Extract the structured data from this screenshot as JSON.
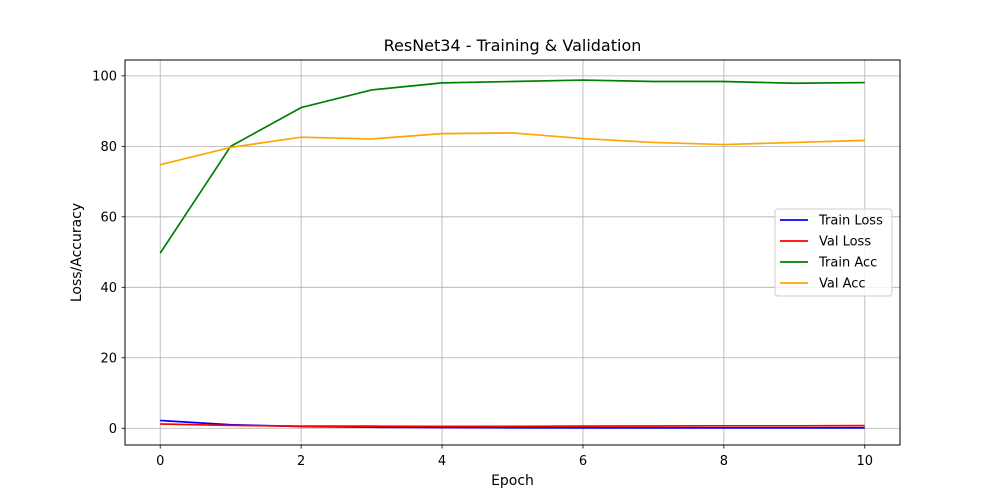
{
  "chart_data": {
    "type": "line",
    "title": "ResNet34 - Training & Validation",
    "xlabel": "Epoch",
    "ylabel": "Loss/Accuracy",
    "xlim": [
      -0.5,
      10.5
    ],
    "ylim": [
      -4.75,
      104.5
    ],
    "xticks": [
      0,
      2,
      4,
      6,
      8,
      10
    ],
    "yticks": [
      0,
      20,
      40,
      60,
      80,
      100
    ],
    "grid": true,
    "legend_position": "center-right",
    "x": [
      0,
      1,
      2,
      3,
      4,
      5,
      6,
      7,
      8,
      9,
      10
    ],
    "series": [
      {
        "name": "Train Loss",
        "color": "#0000ff",
        "values": [
          2.2,
          1.0,
          0.5,
          0.3,
          0.2,
          0.15,
          0.12,
          0.1,
          0.1,
          0.1,
          0.1
        ]
      },
      {
        "name": "Val Loss",
        "color": "#ff0000",
        "values": [
          1.2,
          0.8,
          0.6,
          0.6,
          0.55,
          0.55,
          0.6,
          0.65,
          0.7,
          0.7,
          0.75
        ]
      },
      {
        "name": "Train Acc",
        "color": "#008000",
        "values": [
          49.7,
          80.0,
          91.0,
          96.0,
          98.0,
          98.4,
          98.8,
          98.4,
          98.4,
          97.9,
          98.1
        ]
      },
      {
        "name": "Val Acc",
        "color": "#ffa500",
        "values": [
          74.8,
          79.7,
          82.6,
          82.1,
          83.6,
          83.8,
          82.2,
          81.1,
          80.5,
          81.1,
          81.7
        ]
      }
    ]
  }
}
